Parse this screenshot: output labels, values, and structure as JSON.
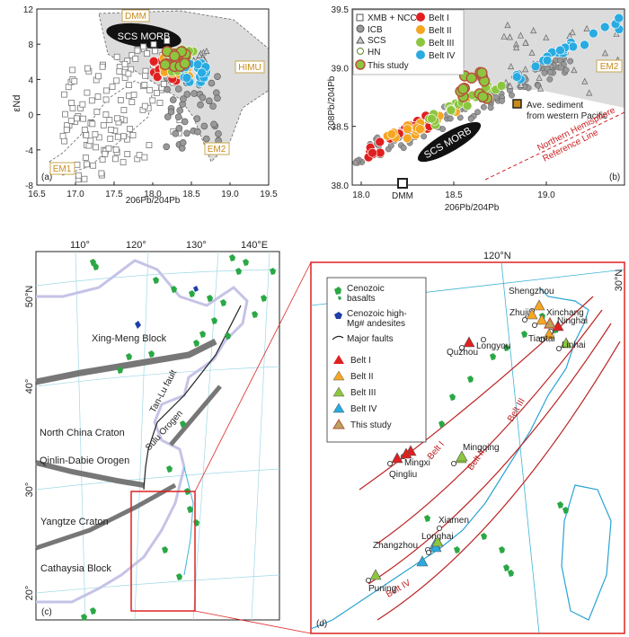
{
  "panel_a": {
    "label": "(a)",
    "y_axis_label": "εNd",
    "x_axis_label": "206Pb/204Pb",
    "y_ticks": [
      "12",
      "8",
      "4",
      "0",
      "-4",
      "-8"
    ],
    "x_ticks": [
      "16.5",
      "17.5",
      "18.5",
      "19.5"
    ],
    "x_ticks_minor": [
      "17.0",
      "18.0",
      "19.0"
    ],
    "fields": [
      "DMM",
      "SCS MORB",
      "HIMU",
      "EM2",
      "EM1"
    ]
  },
  "panel_b": {
    "label": "(b)",
    "y_axis_label": "208Pb/204Pb",
    "x_axis_label": "206Pb/204Pb",
    "y_ticks": [
      "39.5",
      "39.0",
      "38.5",
      "38.0"
    ],
    "x_ticks": [
      "18.0",
      "18.5",
      "19.0"
    ],
    "legend_left": [
      "XMB + NCC",
      "ICB",
      "SCS",
      "HN",
      "This study"
    ],
    "legend_right": [
      "Belt I",
      "Belt II",
      "Belt III",
      "Belt IV"
    ],
    "fields": [
      "EM2",
      "SCS MORB",
      "DMM"
    ],
    "annotation": [
      "Ave. sediment",
      "from western Pacific"
    ],
    "nhrl": [
      "Northern Hemisphere",
      "Reference Line"
    ]
  },
  "panel_c": {
    "label": "(c)",
    "lon_ticks": [
      "110°",
      "120°",
      "130°",
      "140°E"
    ],
    "lat_ticks": [
      "50°N",
      "40°",
      "30°",
      "20°"
    ],
    "regions": [
      "Xing-Meng Block",
      "North China Craton",
      "Qinlin-Dabie Orogen",
      "Yangtze Craton",
      "Cathaysia Block"
    ],
    "faults": [
      "Tan-Lu fault",
      "Sulu Orogen"
    ]
  },
  "panel_d": {
    "label": "(d)",
    "lon_tick": "120°N",
    "lat_tick": "30°N",
    "legend": [
      "Cenozoic basalts",
      "Cenozoic high-Mg# andesites",
      "Major faults",
      "Belt I",
      "Belt II",
      "Belt III",
      "Belt IV",
      "This study"
    ],
    "belt_labels": [
      "Belt I",
      "Belt II",
      "Belt III",
      "Belt IV"
    ],
    "places": [
      "Shengzhou",
      "Zhuji",
      "Xinchang",
      "Ninghai",
      "Tiantai",
      "Linhai",
      "Quzhou",
      "Longyou",
      "Mingxi",
      "Qingliu",
      "Mingqing",
      "Xiamen",
      "Longhai",
      "Zhangzhou",
      "Puning"
    ]
  },
  "colors": {
    "belt_i": "#e02020",
    "belt_ii": "#f5a623",
    "belt_iii": "#8cc63f",
    "belt_iv": "#29abe2",
    "this_study": "#8cc63f",
    "field_gray": "#dcdcdc",
    "morb": "#111111",
    "map_coast": "#3db3d4",
    "basalt_green": "#2aa845"
  }
}
